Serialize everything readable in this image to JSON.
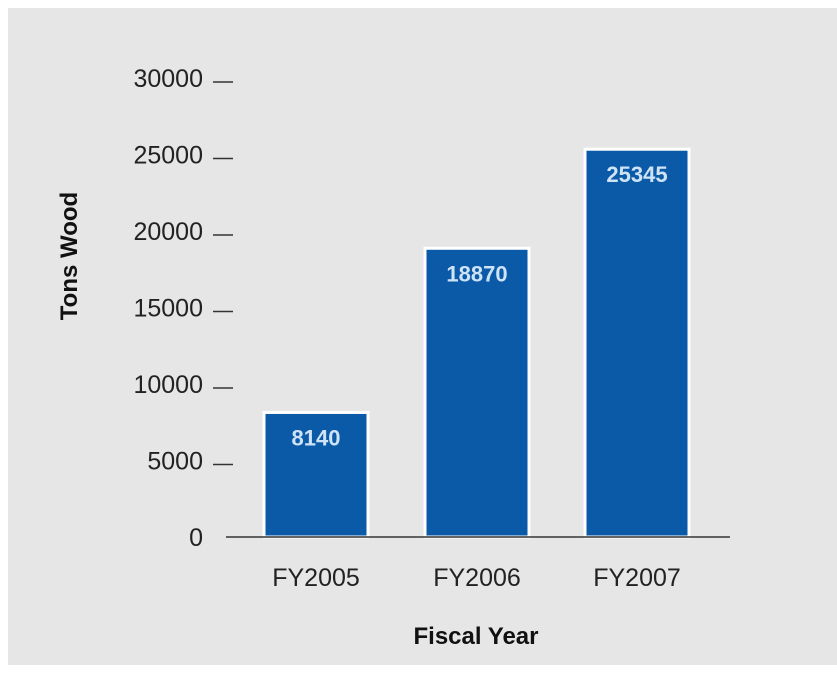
{
  "chart_data": {
    "type": "bar",
    "title": "",
    "xlabel": "Fiscal Year",
    "ylabel": "Tons Wood",
    "categories": [
      "FY2005",
      "FY2006",
      "FY2007"
    ],
    "values": [
      8140,
      18870,
      25345
    ],
    "data_labels": [
      "8140",
      "18870",
      "25345"
    ],
    "ylim": [
      0,
      30000
    ],
    "yticks": [
      0,
      5000,
      10000,
      15000,
      20000,
      25000,
      30000
    ],
    "ytick_labels": [
      "0",
      "5000",
      "10000",
      "15000",
      "20000",
      "25000",
      "30000"
    ],
    "grid": false,
    "legend": "none",
    "bar_color": "#0b5aa8",
    "label_color": "#cfe3f7",
    "background_color": "#e6e6e6"
  }
}
